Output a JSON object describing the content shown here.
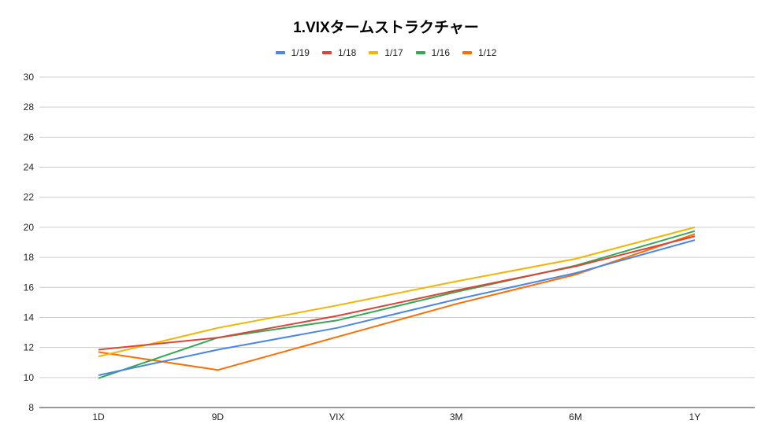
{
  "chart_data": {
    "type": "line",
    "title": "1.VIXタームストラクチャー",
    "categories": [
      "1D",
      "9D",
      "VIX",
      "3M",
      "6M",
      "1Y"
    ],
    "ylim": [
      8,
      30
    ],
    "yticks": [
      8,
      10,
      12,
      14,
      16,
      18,
      20,
      22,
      24,
      26,
      28,
      30
    ],
    "grid": true,
    "legend_position": "top",
    "series": [
      {
        "name": "1/19",
        "color": "#4a86e8",
        "values": [
          10.15,
          11.85,
          13.3,
          15.2,
          16.95,
          19.15
        ]
      },
      {
        "name": "1/18",
        "color": "#db4437",
        "values": [
          11.85,
          12.65,
          14.1,
          15.8,
          17.4,
          19.4
        ]
      },
      {
        "name": "1/17",
        "color": "#f4b400",
        "values": [
          11.4,
          13.3,
          14.8,
          16.4,
          17.9,
          20.0
        ]
      },
      {
        "name": "1/16",
        "color": "#34a853",
        "values": [
          9.95,
          12.65,
          13.8,
          15.7,
          17.45,
          19.75
        ]
      },
      {
        "name": "1/12",
        "color": "#ff6d01",
        "values": [
          11.7,
          10.5,
          12.7,
          14.9,
          16.85,
          19.55
        ]
      }
    ]
  }
}
